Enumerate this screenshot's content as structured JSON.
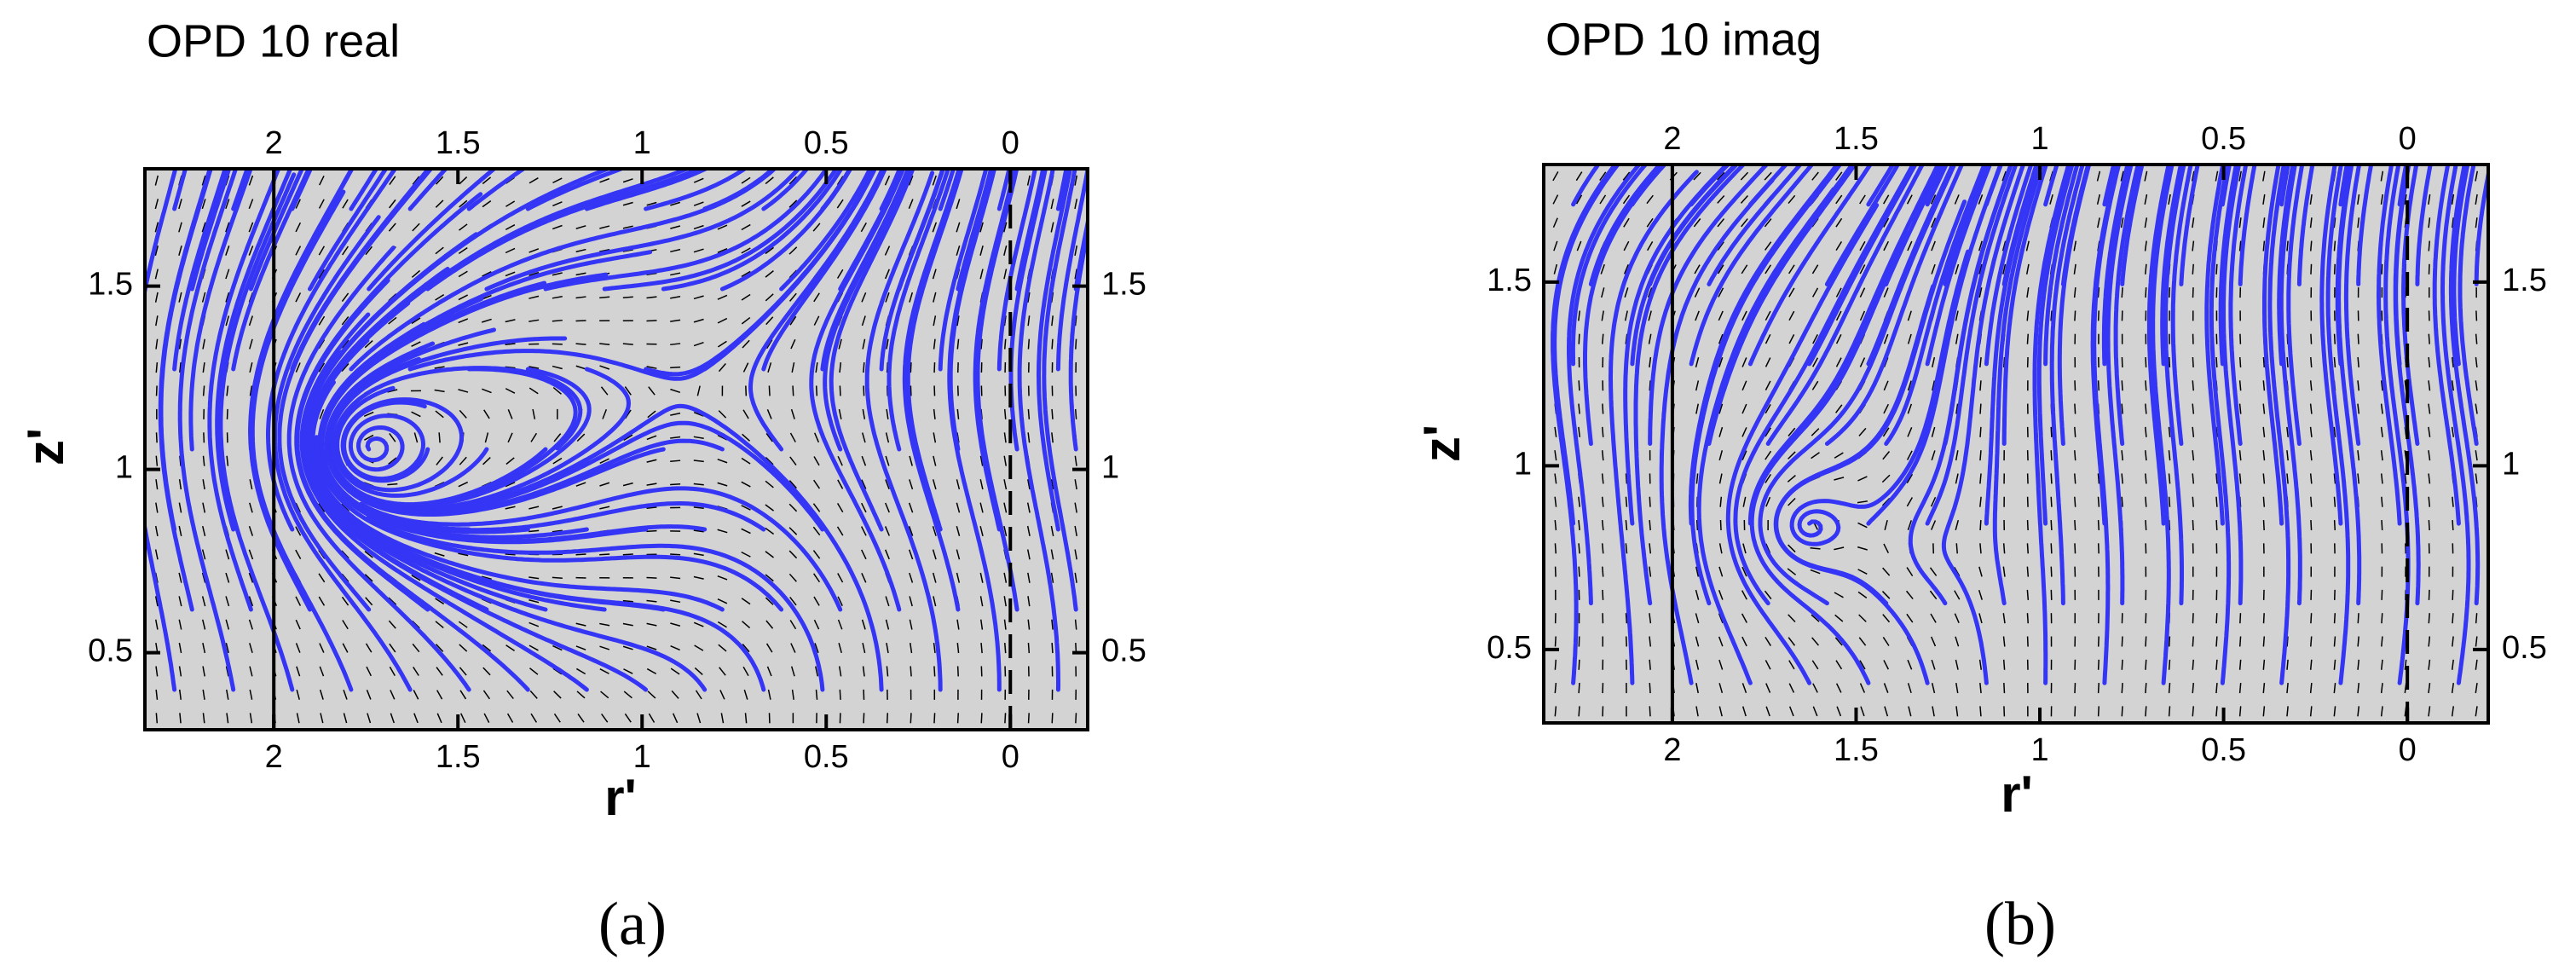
{
  "chart_data": [
    {
      "type": "streamline",
      "title": "OPD 10 real",
      "xlabel": "r'",
      "ylabel": "z'",
      "caption": "(a)",
      "xlim": [
        2.35,
        -0.21
      ],
      "ylim": [
        0.29,
        1.82
      ],
      "xticks": [
        2,
        1.5,
        1,
        0.5,
        0
      ],
      "yticks": [
        0.5,
        1,
        1.5
      ],
      "reference_lines": [
        {
          "x": 2,
          "style": "solid"
        },
        {
          "x": 0,
          "style": "dashed"
        }
      ],
      "background": "#d3d3d3",
      "line_color": "#3535f5"
    },
    {
      "type": "streamline",
      "title": "OPD 10 imag",
      "xlabel": "r'",
      "ylabel": "z'",
      "caption": "(b)",
      "xlim": [
        2.35,
        -0.22
      ],
      "ylim": [
        0.3,
        1.82
      ],
      "xticks": [
        2,
        1.5,
        1,
        0.5,
        0
      ],
      "yticks": [
        0.5,
        1,
        1.5
      ],
      "reference_lines": [
        {
          "x": 2,
          "style": "solid"
        },
        {
          "x": 0,
          "style": "dashed"
        }
      ],
      "background": "#d3d3d3",
      "line_color": "#3535f5"
    }
  ]
}
